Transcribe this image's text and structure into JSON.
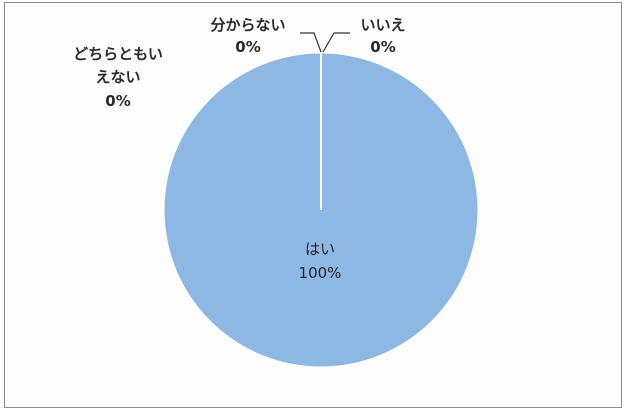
{
  "chart_data": {
    "type": "pie",
    "title": "",
    "categories": [
      "はい",
      "いいえ",
      "分からない",
      "どちらともいえない"
    ],
    "values": [
      100,
      0,
      0,
      0
    ],
    "label_text": {
      "hai_name": "はい",
      "hai_pct": "100%",
      "iie_name": "いいえ",
      "iie_pct": "0%",
      "wakaranai_name": "分からない",
      "wakaranai_pct": "0%",
      "dochira_line1": "どちらともい",
      "dochira_line2": "えない",
      "dochira_pct": "0%"
    },
    "colors": {
      "slice": "#8cb8e3",
      "separator": "#ffffff",
      "leader": "#333333"
    }
  }
}
